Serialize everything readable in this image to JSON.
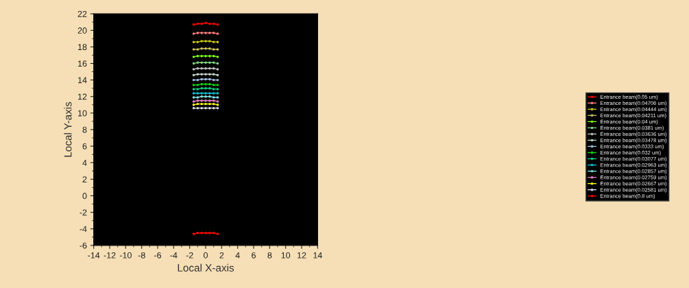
{
  "chart_data": {
    "type": "line",
    "xlabel": "Local X-axis",
    "ylabel": "Local Y-axis",
    "x": [
      -1.5,
      -1,
      -0.5,
      0,
      0.5,
      1,
      1.5
    ],
    "xlim": [
      -14,
      14
    ],
    "xticks": [
      -14,
      -12,
      -10,
      -8,
      -6,
      -4,
      -2,
      0,
      2,
      4,
      6,
      8,
      10,
      12,
      14
    ],
    "ylim": [
      -6,
      22
    ],
    "yticks": [
      -6,
      -4,
      -2,
      0,
      2,
      4,
      6,
      8,
      10,
      12,
      14,
      16,
      18,
      20,
      22
    ],
    "legend": "right",
    "marker": "circle",
    "series": [
      {
        "name": "Entrance beam(0.05 um)",
        "color": "#ff0000",
        "values": [
          20.7,
          20.8,
          20.8,
          20.9,
          20.8,
          20.8,
          20.7
        ]
      },
      {
        "name": "Entrance beam(0.04706 um)",
        "color": "#ff8080",
        "values": [
          19.6,
          19.7,
          19.7,
          19.7,
          19.7,
          19.7,
          19.6
        ]
      },
      {
        "name": "Entrance beam(0.04444 um)",
        "color": "#c8c800",
        "values": [
          18.6,
          18.6,
          18.7,
          18.7,
          18.7,
          18.6,
          18.6
        ]
      },
      {
        "name": "Entrance beam(0.04211 um)",
        "color": "#c8c060",
        "values": [
          17.7,
          17.7,
          17.8,
          17.8,
          17.8,
          17.7,
          17.7
        ]
      },
      {
        "name": "Entrance beam(0.04 um)",
        "color": "#80ff00",
        "values": [
          16.8,
          16.9,
          16.9,
          16.9,
          16.9,
          16.9,
          16.8
        ]
      },
      {
        "name": "Entrance beam(0.0381 um)",
        "color": "#80d080",
        "values": [
          16.0,
          16.1,
          16.1,
          16.1,
          16.1,
          16.1,
          16.0
        ]
      },
      {
        "name": "Entrance beam(0.03636 um)",
        "color": "#c0c0c0",
        "values": [
          15.3,
          15.4,
          15.4,
          15.4,
          15.4,
          15.4,
          15.3
        ]
      },
      {
        "name": "Entrance beam(0.03478 um)",
        "color": "#c0d0c0",
        "values": [
          14.6,
          14.7,
          14.7,
          14.7,
          14.7,
          14.7,
          14.6
        ]
      },
      {
        "name": "Entrance beam(0.0333 um)",
        "color": "#a0c0e0",
        "values": [
          14.0,
          14.0,
          14.1,
          14.1,
          14.1,
          14.0,
          14.0
        ]
      },
      {
        "name": "Entrance beam(0.032 um)",
        "color": "#00e000",
        "values": [
          13.4,
          13.4,
          13.5,
          13.5,
          13.5,
          13.4,
          13.4
        ]
      },
      {
        "name": "Entrance beam(0.03077 um)",
        "color": "#00d080",
        "values": [
          12.9,
          12.9,
          13.0,
          13.0,
          13.0,
          12.9,
          12.9
        ]
      },
      {
        "name": "Entrance beam(0.02963 um)",
        "color": "#00c0d0",
        "values": [
          12.4,
          12.4,
          12.4,
          12.4,
          12.4,
          12.4,
          12.4
        ]
      },
      {
        "name": "Entrance beam(0.02857 um)",
        "color": "#80e0e0",
        "values": [
          11.9,
          11.9,
          12.0,
          12.0,
          12.0,
          11.9,
          11.9
        ]
      },
      {
        "name": "Entrance beam(0.02759 um)",
        "color": "#e080c0",
        "values": [
          11.4,
          11.5,
          11.5,
          11.5,
          11.5,
          11.5,
          11.4
        ]
      },
      {
        "name": "Entrance beam(0.02667 um)",
        "color": "#ffff00",
        "values": [
          11.0,
          11.1,
          11.1,
          11.1,
          11.1,
          11.1,
          11.0
        ]
      },
      {
        "name": "Entrance beam(0.02581 um)",
        "color": "#e0e0e0",
        "values": [
          10.6,
          10.6,
          10.6,
          10.6,
          10.6,
          10.6,
          10.6
        ]
      },
      {
        "name": "Entrance beam(0.8 um)",
        "color": "#ff0000",
        "values": [
          -4.6,
          -4.5,
          -4.5,
          -4.5,
          -4.5,
          -4.5,
          -4.6
        ]
      }
    ]
  }
}
